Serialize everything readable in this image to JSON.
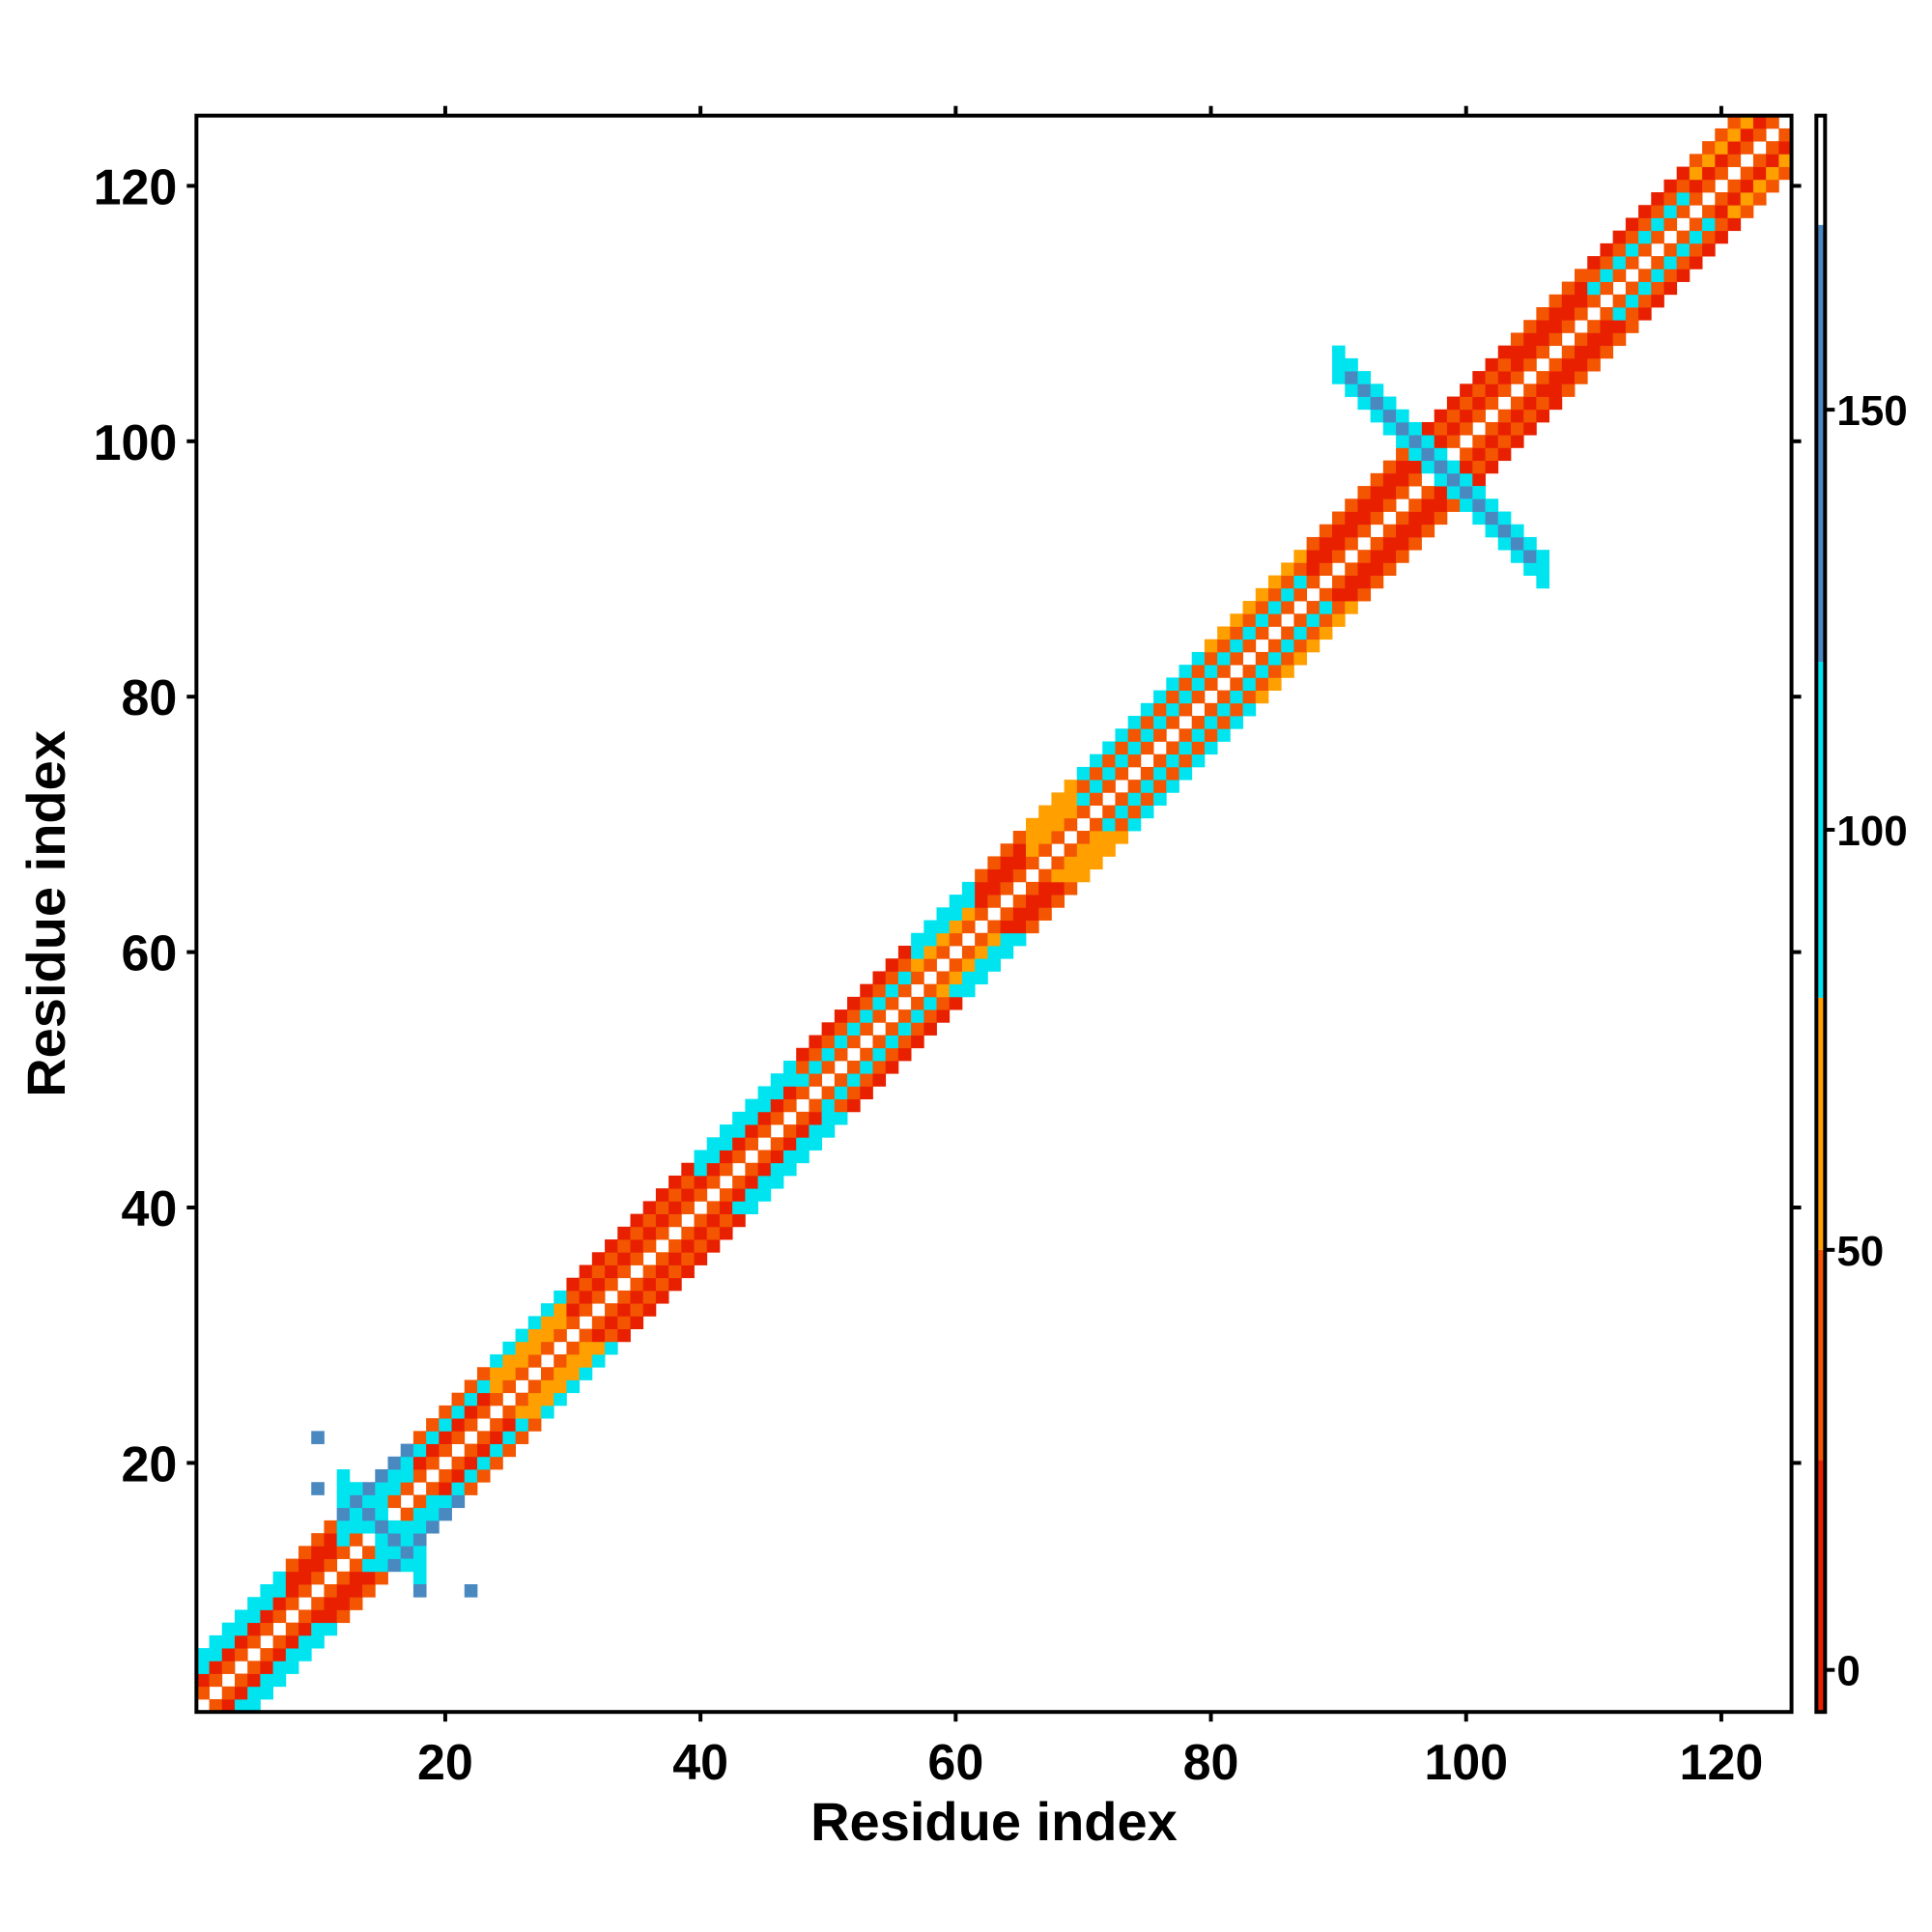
{
  "chart_data": {
    "type": "heatmap",
    "title": "",
    "xlabel": "Residue index",
    "ylabel": "Residue index",
    "xlim": [
      0.5,
      125.5
    ],
    "ylim": [
      0.5,
      125.5
    ],
    "x_ticks": [
      20,
      40,
      60,
      80,
      100,
      120
    ],
    "y_ticks": [
      20,
      40,
      60,
      80,
      100,
      120
    ],
    "grid": false,
    "legend": "colorbar at right",
    "colorbar": {
      "range": [
        -5,
        185
      ],
      "ticks": [
        0,
        50,
        100,
        150
      ],
      "bands": [
        {
          "from": -5,
          "to": 25,
          "color": "#e82000"
        },
        {
          "from": 25,
          "to": 50,
          "color": "#f45500"
        },
        {
          "from": 50,
          "to": 80,
          "color": "#ffa000"
        },
        {
          "from": 80,
          "to": 120,
          "color": "#00e4f0"
        },
        {
          "from": 120,
          "to": 172,
          "color": "#4a88c0"
        },
        {
          "from": 172,
          "to": 185,
          "color": "#ffffff"
        }
      ]
    },
    "value_color_scale": {
      "red": "#e82000",
      "orange_red": "#f45500",
      "orange": "#ffa000",
      "cyan": "#00e4f0",
      "light_blue": "#30b8e0",
      "steel_blue": "#4a88c0"
    },
    "structure": {
      "diagonal_range": [
        1,
        125
      ],
      "band_offsets": [
        1,
        2,
        3,
        4
      ],
      "segments": [
        {
          "from": 1,
          "to": 8,
          "values_by_offset": [
            40,
            10,
            90,
            95
          ]
        },
        {
          "from": 8,
          "to": 12,
          "values_by_offset": [
            40,
            10,
            10,
            40
          ]
        },
        {
          "from": 12,
          "to": 18,
          "values_by_offset": [
            40,
            95,
            95,
            130
          ]
        },
        {
          "from": 18,
          "to": 24,
          "values_by_offset": [
            40,
            10,
            95,
            40
          ]
        },
        {
          "from": 24,
          "to": 30,
          "values_by_offset": [
            40,
            65,
            65,
            95
          ]
        },
        {
          "from": 30,
          "to": 40,
          "values_by_offset": [
            40,
            10,
            40,
            10
          ]
        },
        {
          "from": 40,
          "to": 48,
          "values_by_offset": [
            40,
            10,
            95,
            95
          ]
        },
        {
          "from": 48,
          "to": 57,
          "values_by_offset": [
            40,
            95,
            40,
            10
          ]
        },
        {
          "from": 57,
          "to": 62,
          "values_by_offset": [
            40,
            65,
            95,
            95
          ]
        },
        {
          "from": 62,
          "to": 66,
          "values_by_offset": [
            40,
            10,
            10,
            40
          ]
        },
        {
          "from": 66,
          "to": 70,
          "values_by_offset": [
            40,
            65,
            65,
            65
          ]
        },
        {
          "from": 70,
          "to": 80,
          "values_by_offset": [
            40,
            95,
            40,
            95
          ]
        },
        {
          "from": 80,
          "to": 88,
          "values_by_offset": [
            40,
            95,
            40,
            65
          ]
        },
        {
          "from": 88,
          "to": 96,
          "values_by_offset": [
            40,
            10,
            10,
            40
          ]
        },
        {
          "from": 96,
          "to": 104,
          "values_by_offset": [
            40,
            10,
            40,
            10
          ]
        },
        {
          "from": 104,
          "to": 110,
          "values_by_offset": [
            40,
            10,
            10,
            40
          ]
        },
        {
          "from": 110,
          "to": 118,
          "values_by_offset": [
            40,
            95,
            40,
            10
          ]
        },
        {
          "from": 118,
          "to": 125,
          "values_by_offset": [
            40,
            10,
            65,
            40
          ]
        }
      ],
      "antidiagonal_patches": [
        {
          "i_range": [
            90,
            106
          ],
          "sum": 196,
          "half_width": 1,
          "core_value": 140,
          "edge_value": 100
        },
        {
          "i_range": [
            12,
            18
          ],
          "sum": 30,
          "half_width": 1,
          "core_value": 130,
          "edge_value": 100
        }
      ],
      "scattered_points": [
        {
          "x": 10,
          "y": 22,
          "value": 130
        },
        {
          "x": 10,
          "y": 18,
          "value": 130
        },
        {
          "x": 18,
          "y": 10,
          "value": 130
        },
        {
          "x": 22,
          "y": 10,
          "value": 130
        }
      ]
    }
  }
}
